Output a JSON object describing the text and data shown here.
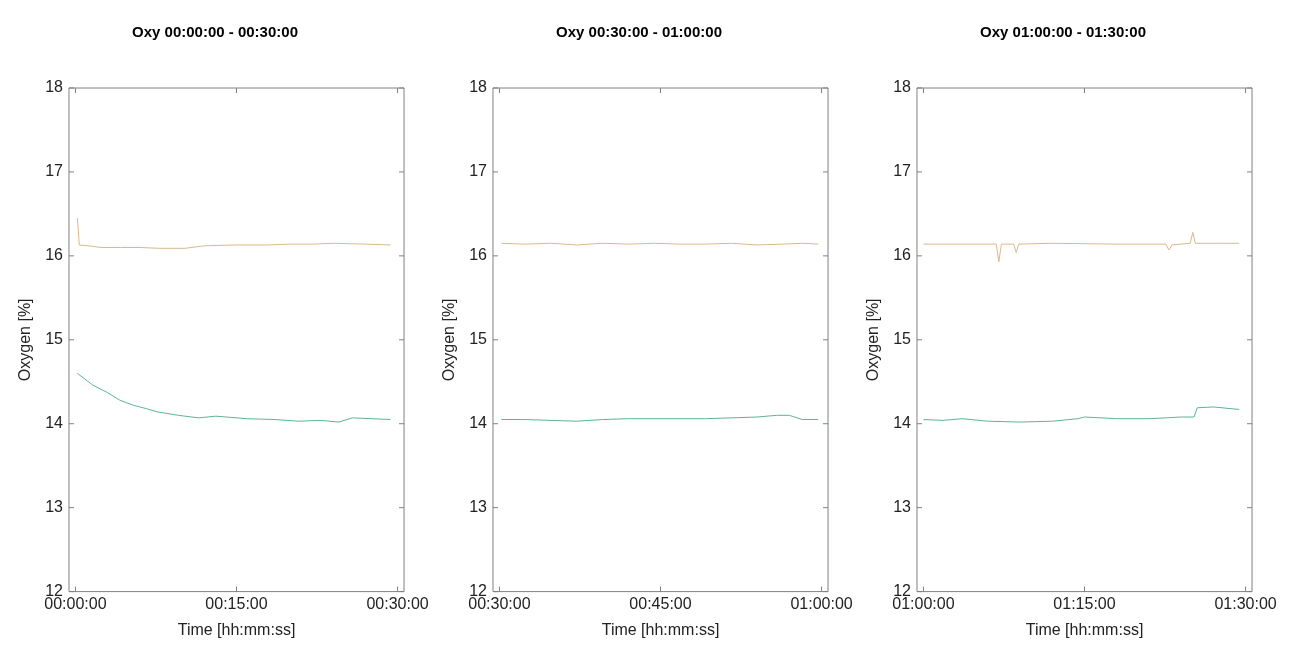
{
  "chart_data": [
    {
      "type": "line",
      "title": "Oxy 00:00:00 - 00:30:00",
      "xlabel": "Time [hh:mm:ss]",
      "ylabel": "Oxygen [%]",
      "xlim": [
        -0.01,
        0.51
      ],
      "xticks": [
        {
          "value": 0,
          "label": "00:00:00"
        },
        {
          "value": 0.25,
          "label": "00:15:00"
        },
        {
          "value": 0.5,
          "label": "00:30:00"
        }
      ],
      "ylim": [
        12,
        18
      ],
      "yticks": [
        12,
        13,
        14,
        15,
        16,
        17,
        18
      ],
      "grid": false,
      "legend": false,
      "marker": "none",
      "line_style": "solid",
      "series": [
        {
          "color": "#d9b98a",
          "x": [
            0.003,
            0.006,
            0.02,
            0.04,
            0.07,
            0.1,
            0.13,
            0.17,
            0.2,
            0.25,
            0.3,
            0.33,
            0.37,
            0.4,
            0.45,
            0.489
          ],
          "values": [
            16.45,
            16.13,
            16.12,
            16.1,
            16.1,
            16.1,
            16.09,
            16.09,
            16.12,
            16.13,
            16.13,
            16.14,
            16.14,
            16.15,
            16.14,
            16.13
          ]
        },
        {
          "color": "#5fb39b",
          "x": [
            0.003,
            0.027,
            0.05,
            0.069,
            0.09,
            0.11,
            0.128,
            0.16,
            0.191,
            0.218,
            0.266,
            0.31,
            0.346,
            0.38,
            0.409,
            0.43,
            0.46,
            0.489
          ],
          "values": [
            14.6,
            14.46,
            14.37,
            14.28,
            14.22,
            14.18,
            14.14,
            14.1,
            14.07,
            14.09,
            14.06,
            14.05,
            14.03,
            14.04,
            14.02,
            14.07,
            14.06,
            14.05
          ]
        }
      ]
    },
    {
      "type": "line",
      "title": "Oxy 00:30:00 - 01:00:00",
      "xlabel": "Time [hh:mm:ss]",
      "ylabel": "Oxygen [%]",
      "xlim": [
        0.49,
        1.01
      ],
      "xticks": [
        {
          "value": 0.5,
          "label": "00:30:00"
        },
        {
          "value": 0.75,
          "label": "00:45:00"
        },
        {
          "value": 1,
          "label": "01:00:00"
        }
      ],
      "ylim": [
        12,
        18
      ],
      "yticks": [
        12,
        13,
        14,
        15,
        16,
        17,
        18
      ],
      "grid": false,
      "legend": false,
      "marker": "none",
      "line_style": "solid",
      "series": [
        {
          "color": "#d9b98a",
          "x": [
            0.503,
            0.54,
            0.58,
            0.62,
            0.66,
            0.7,
            0.74,
            0.78,
            0.82,
            0.86,
            0.9,
            0.94,
            0.97,
            0.995
          ],
          "values": [
            16.15,
            16.14,
            16.15,
            16.13,
            16.15,
            16.14,
            16.15,
            16.14,
            16.14,
            16.15,
            16.13,
            16.14,
            16.15,
            16.14
          ]
        },
        {
          "color": "#5fb39b",
          "x": [
            0.503,
            0.54,
            0.58,
            0.62,
            0.66,
            0.7,
            0.74,
            0.78,
            0.82,
            0.86,
            0.9,
            0.93,
            0.95,
            0.97,
            0.995
          ],
          "values": [
            14.05,
            14.05,
            14.04,
            14.03,
            14.05,
            14.06,
            14.06,
            14.06,
            14.06,
            14.07,
            14.08,
            14.1,
            14.1,
            14.05,
            14.05
          ]
        }
      ]
    },
    {
      "type": "line",
      "title": "Oxy 01:00:00 - 01:30:00",
      "xlabel": "Time [hh:mm:ss]",
      "ylabel": "Oxygen [%]",
      "xlim": [
        0.99,
        1.51
      ],
      "xticks": [
        {
          "value": 1,
          "label": "01:00:00"
        },
        {
          "value": 1.25,
          "label": "01:15:00"
        },
        {
          "value": 1.5,
          "label": "01:30:00"
        }
      ],
      "ylim": [
        12,
        18
      ],
      "yticks": [
        12,
        13,
        14,
        15,
        16,
        17,
        18
      ],
      "grid": false,
      "legend": false,
      "marker": "none",
      "line_style": "solid",
      "series": [
        {
          "color": "#d9b98a",
          "x": [
            1.0,
            1.05,
            1.1,
            1.113,
            1.117,
            1.121,
            1.14,
            1.144,
            1.148,
            1.2,
            1.3,
            1.376,
            1.381,
            1.386,
            1.414,
            1.418,
            1.422,
            1.46,
            1.49
          ],
          "values": [
            16.14,
            16.14,
            16.14,
            16.14,
            15.93,
            16.14,
            16.14,
            16.04,
            16.14,
            16.15,
            16.14,
            16.14,
            16.07,
            16.13,
            16.15,
            16.28,
            16.15,
            16.15,
            16.15
          ]
        },
        {
          "color": "#5fb39b",
          "x": [
            1.0,
            1.03,
            1.06,
            1.1,
            1.15,
            1.2,
            1.24,
            1.25,
            1.3,
            1.35,
            1.4,
            1.42,
            1.425,
            1.45,
            1.49
          ],
          "values": [
            14.05,
            14.04,
            14.06,
            14.03,
            14.02,
            14.03,
            14.06,
            14.08,
            14.06,
            14.06,
            14.08,
            14.08,
            14.19,
            14.2,
            14.17
          ]
        }
      ]
    }
  ]
}
